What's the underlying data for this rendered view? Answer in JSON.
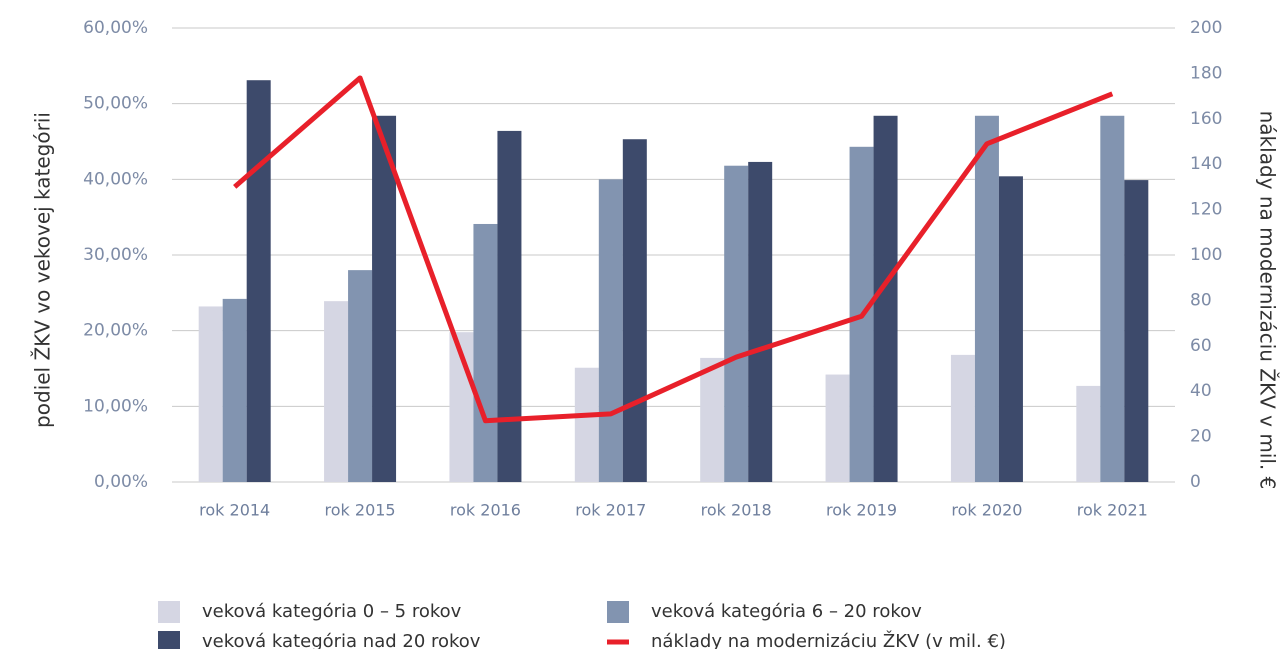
{
  "chart_data": {
    "type": "bar",
    "y_label": "podiel ŽKV vo vekovej kategórii",
    "y2_label": "náklady na modernizáciu ŽKV v mil. €",
    "categories": [
      "rok 2014",
      "rok 2015",
      "rok 2016",
      "rok 2017",
      "rok 2018",
      "rok 2019",
      "rok 2020",
      "rok 2021"
    ],
    "series": [
      {
        "name": "veková kategória 0 – 5 rokov",
        "color": "#d5d6e3",
        "type": "bar",
        "values": [
          23.2,
          23.9,
          19.8,
          15.1,
          16.4,
          14.2,
          16.8,
          12.7
        ]
      },
      {
        "name": "veková kategória 6 – 20 rokov",
        "color": "#8294b0",
        "type": "bar",
        "values": [
          24.2,
          28.0,
          34.1,
          40.0,
          41.8,
          44.3,
          48.4,
          48.4
        ]
      },
      {
        "name": "veková kategória nad 20 rokov",
        "color": "#3d4a6b",
        "type": "bar",
        "values": [
          53.1,
          48.4,
          46.4,
          45.3,
          42.3,
          48.4,
          40.4,
          39.9
        ]
      },
      {
        "name": "náklady na modernizáciu ŽKV (v mil. €)",
        "color": "#e8202a",
        "type": "line",
        "axis": "y2",
        "values": [
          130,
          178,
          27,
          30,
          55,
          73,
          149,
          171
        ]
      }
    ],
    "ylim": [
      0,
      60
    ],
    "yticks": [
      {
        "value": 0,
        "label": "0,00%"
      },
      {
        "value": 10,
        "label": "10,00%"
      },
      {
        "value": 20,
        "label": "20,00%"
      },
      {
        "value": 30,
        "label": "30,00%"
      },
      {
        "value": 40,
        "label": "40,00%"
      },
      {
        "value": 50,
        "label": "50,00%"
      },
      {
        "value": 60,
        "label": "60,00%"
      }
    ],
    "y2lim": [
      0,
      200
    ],
    "y2ticks": [
      0,
      20,
      40,
      60,
      80,
      100,
      120,
      140,
      160,
      180,
      200
    ],
    "grid": true
  }
}
